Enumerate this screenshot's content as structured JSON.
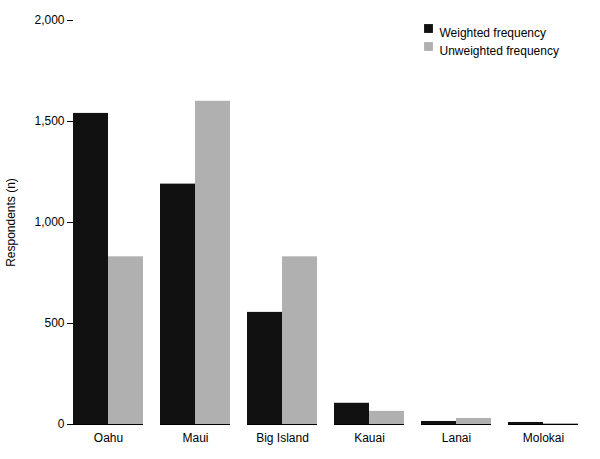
{
  "chart_data": {
    "type": "bar",
    "categories": [
      "Oahu",
      "Maui",
      "Big Island",
      "Kauai",
      "Lanai",
      "Molokai"
    ],
    "series": [
      {
        "name": "Weighted frequency",
        "color": "#111111",
        "values": [
          1540,
          1190,
          555,
          105,
          15,
          10
        ]
      },
      {
        "name": "Unweighted frequency",
        "color": "#b0b0b0",
        "values": [
          830,
          1600,
          830,
          65,
          30,
          5
        ]
      }
    ],
    "ylabel": "Respondents (n)",
    "ylim": [
      0,
      2000
    ],
    "yticks": [
      0,
      500,
      {
        "value": 1000,
        "label": "1,000"
      },
      {
        "value": 1500,
        "label": "1,500"
      },
      {
        "value": 2000,
        "label": "2,000"
      }
    ],
    "legend": "upper right",
    "grid": false
  }
}
